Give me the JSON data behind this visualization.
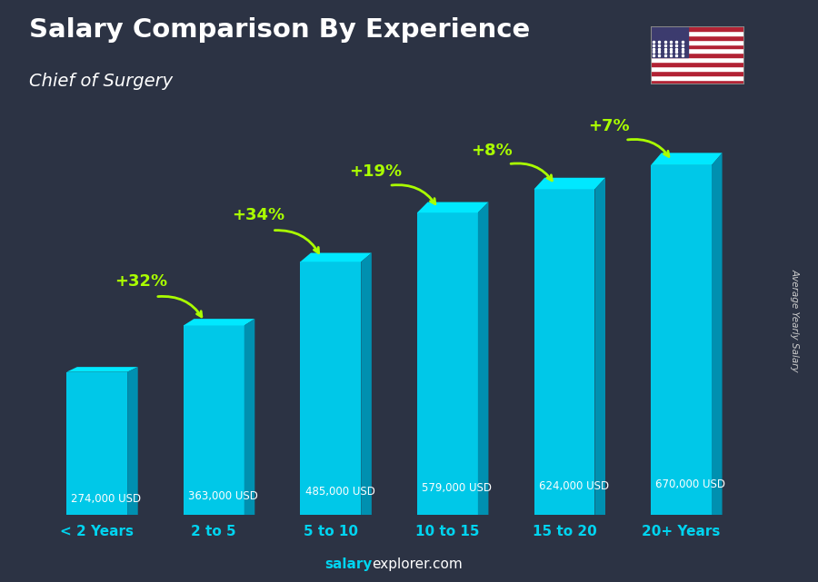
{
  "title": "Salary Comparison By Experience",
  "subtitle": "Chief of Surgery",
  "categories": [
    "< 2 Years",
    "2 to 5",
    "5 to 10",
    "10 to 15",
    "15 to 20",
    "20+ Years"
  ],
  "values": [
    274000,
    363000,
    485000,
    579000,
    624000,
    670000
  ],
  "value_labels": [
    "274,000 USD",
    "363,000 USD",
    "485,000 USD",
    "579,000 USD",
    "624,000 USD",
    "670,000 USD"
  ],
  "pct_labels": [
    "+32%",
    "+34%",
    "+19%",
    "+8%",
    "+7%"
  ],
  "bar_face_color": "#00c8e8",
  "bar_top_color": "#00e8ff",
  "bar_side_color": "#0090b0",
  "title_color": "#ffffff",
  "subtitle_color": "#ffffff",
  "value_label_color": "#ffffff",
  "xtick_color": "#00d4f0",
  "pct_color": "#aaff00",
  "arrow_color": "#aaff00",
  "footer_salary": "salary",
  "footer_explorer": "explorer",
  "footer_com": ".com",
  "footer_salary_color": "#00d4f0",
  "footer_explorer_color": "#ffffff",
  "ylabel": "Average Yearly Salary",
  "ylabel_color": "#cccccc",
  "bg_color": "#2c3344",
  "y_max": 780000
}
